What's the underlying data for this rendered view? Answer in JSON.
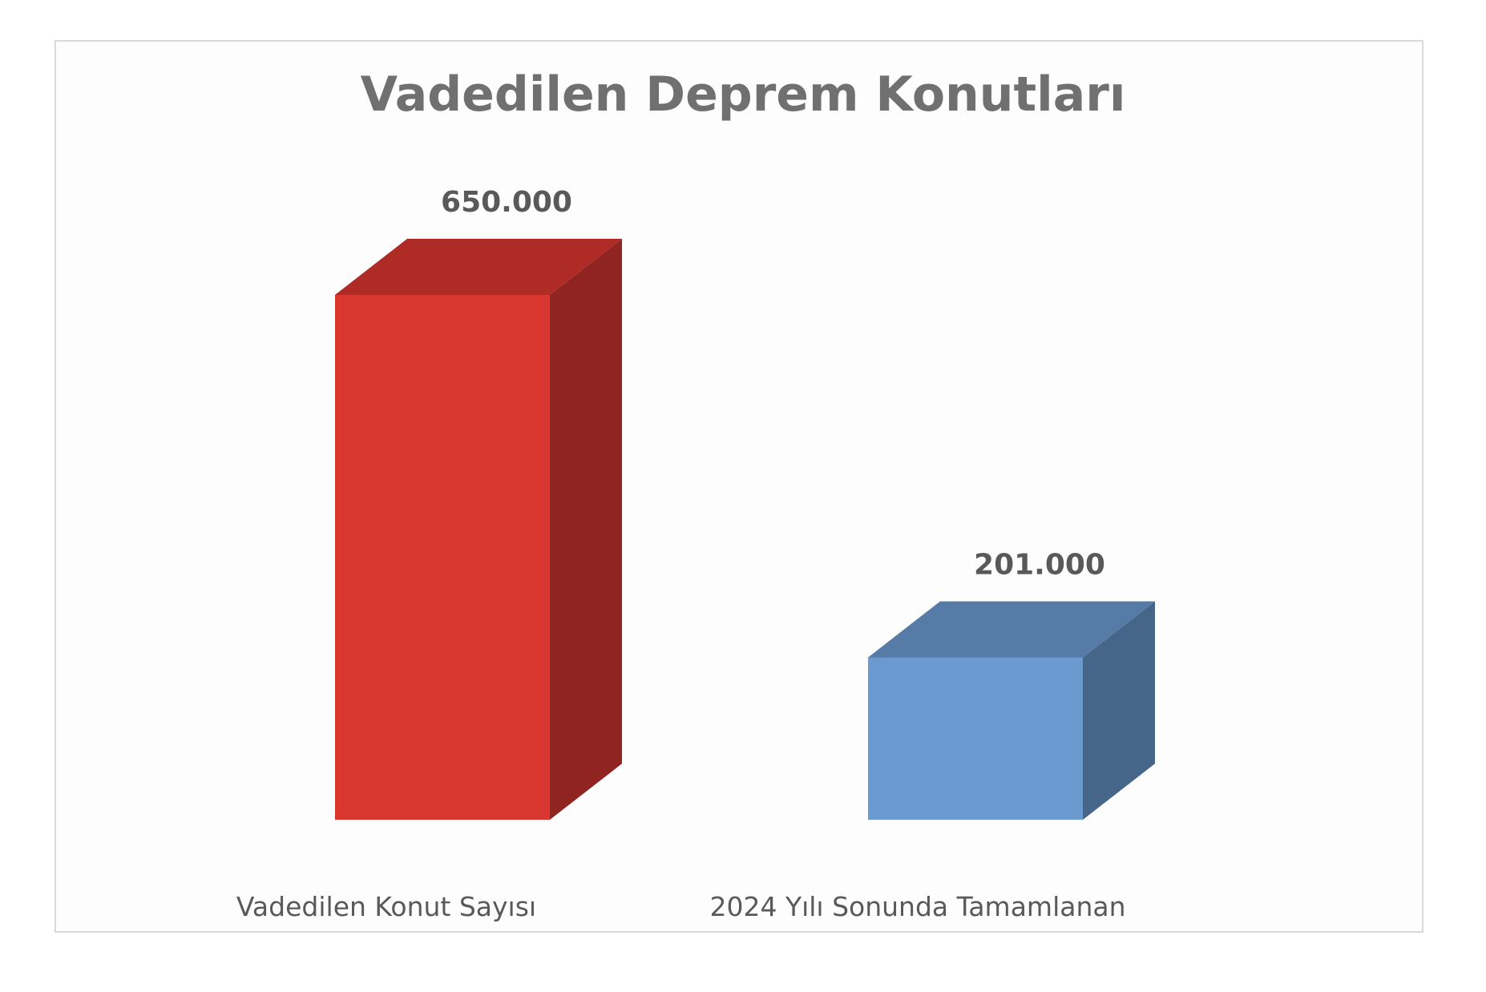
{
  "chart_data": {
    "type": "bar",
    "title": "Vadedilen Deprem Konutları",
    "xlabel": "",
    "ylabel": "",
    "categories": [
      "Vadedilen Konut Sayısı",
      "2024 Yılı Sonunda Tamamlanan"
    ],
    "values": [
      650000,
      201000
    ],
    "value_labels": [
      "650.000",
      "201.000"
    ],
    "colors": [
      "#d93630",
      "#6a9ad0"
    ],
    "ylim": [
      0,
      650000
    ],
    "grid": false,
    "legend": "none",
    "style": "3d-column"
  }
}
